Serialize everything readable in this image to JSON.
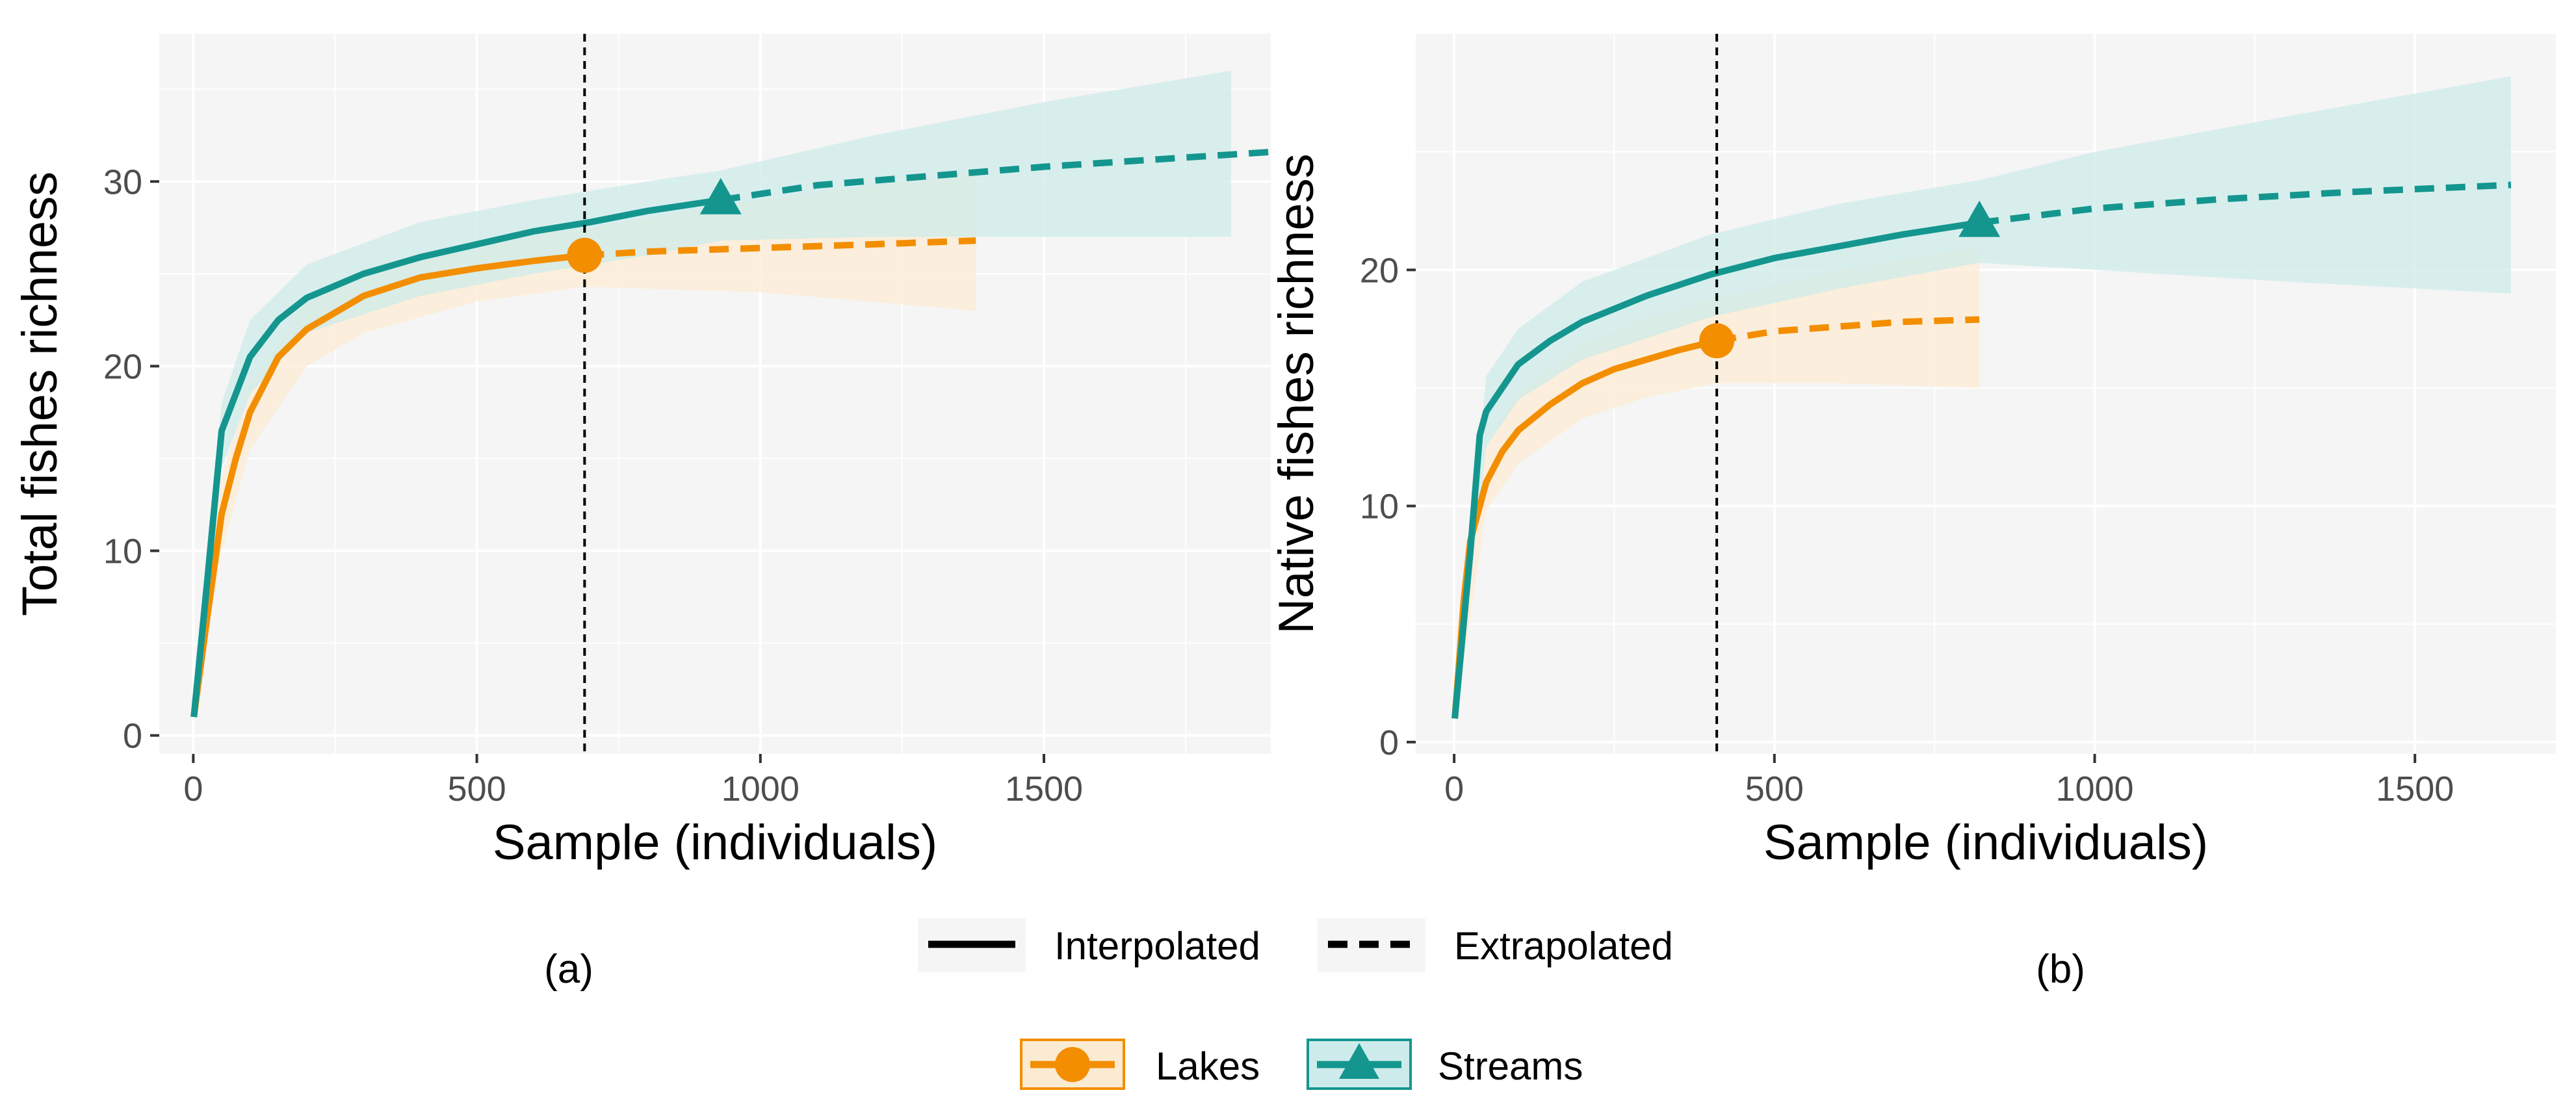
{
  "figure": {
    "panel_labels": [
      "(a)",
      "(b)"
    ]
  },
  "legend": {
    "line_types": [
      {
        "label": "Interpolated",
        "style": "solid"
      },
      {
        "label": "Extrapolated",
        "style": "dashed"
      }
    ],
    "groups": [
      {
        "label": "Lakes",
        "shape": "circle",
        "color": "#F28E00"
      },
      {
        "label": "Streams",
        "shape": "triangle",
        "color": "#14968F"
      }
    ]
  },
  "colors": {
    "lakes": "#F28E00",
    "lakes_fill": "#FCEBD3",
    "streams": "#14968F",
    "streams_fill": "#CDEBEA",
    "panel_bg": "#F5F5F5",
    "grid": "#FFFFFF"
  },
  "chart_data": [
    {
      "type": "line",
      "panel": "(a)",
      "xlabel": "Sample (individuals)",
      "ylabel": "Total fishes richness",
      "xlim": [
        -60,
        1900
      ],
      "ylim": [
        -1,
        38
      ],
      "xticks": [
        0,
        500,
        1000,
        1500
      ],
      "yticks": [
        0,
        10,
        20,
        30
      ],
      "grid": true,
      "reference_line_x": 690,
      "series": [
        {
          "name": "Lakes",
          "observed": {
            "x": 690,
            "y": 26
          },
          "interpolated": {
            "x": [
              1,
              25,
              50,
              75,
              100,
              150,
              200,
              300,
              400,
              500,
              600,
              690
            ],
            "y": [
              1,
              6.5,
              12,
              15,
              17.5,
              20.5,
              22,
              23.8,
              24.8,
              25.3,
              25.7,
              26
            ]
          },
          "extrapolated": {
            "x": [
              690,
              800,
              1000,
              1200,
              1380
            ],
            "y": [
              26,
              26.2,
              26.4,
              26.6,
              26.8
            ]
          },
          "ci_upper": {
            "x": [
              1,
              50,
              100,
              200,
              300,
              500,
              690,
              1000,
              1380
            ],
            "y": [
              2,
              14,
              19,
              23.5,
              25.2,
              26.8,
              27.5,
              29,
              30.5
            ]
          },
          "ci_lower": {
            "x": [
              1,
              50,
              100,
              200,
              300,
              500,
              690,
              1000,
              1380
            ],
            "y": [
              1,
              10,
              15.5,
              20,
              21.8,
              23.5,
              24.3,
              24,
              23
            ]
          }
        },
        {
          "name": "Streams",
          "observed": {
            "x": 930,
            "y": 29
          },
          "interpolated": {
            "x": [
              1,
              25,
              50,
              75,
              100,
              150,
              200,
              300,
              400,
              500,
              600,
              700,
              800,
              930
            ],
            "y": [
              1,
              8.5,
              16.5,
              18.5,
              20.5,
              22.5,
              23.7,
              25,
              25.9,
              26.6,
              27.3,
              27.8,
              28.4,
              29
            ]
          },
          "extrapolated": {
            "x": [
              930,
              1100,
              1300,
              1500,
              1700,
              1900
            ],
            "y": [
              29,
              29.8,
              30.3,
              30.8,
              31.2,
              31.6
            ]
          },
          "ci_upper": {
            "x": [
              1,
              50,
              100,
              200,
              400,
              600,
              800,
              930,
              1200,
              1500,
              1830
            ],
            "y": [
              2,
              18,
              22.5,
              25.5,
              27.8,
              29,
              30,
              30.6,
              32.5,
              34.3,
              36
            ]
          },
          "ci_lower": {
            "x": [
              1,
              50,
              100,
              200,
              400,
              600,
              800,
              930,
              1200,
              1500,
              1830
            ],
            "y": [
              1,
              14.5,
              18.5,
              21.8,
              23.8,
              25,
              26,
              26.8,
              27,
              27,
              27
            ]
          }
        }
      ]
    },
    {
      "type": "line",
      "panel": "(b)",
      "xlabel": "Sample (individuals)",
      "ylabel": "Native fishes richness",
      "xlim": [
        -60,
        1720
      ],
      "ylim": [
        -0.5,
        30
      ],
      "xticks": [
        0,
        500,
        1000,
        1500
      ],
      "yticks": [
        0,
        10,
        20
      ],
      "grid": true,
      "reference_line_x": 410,
      "series": [
        {
          "name": "Lakes",
          "observed": {
            "x": 410,
            "y": 17
          },
          "interpolated": {
            "x": [
              1,
              15,
              25,
              50,
              75,
              100,
              150,
              200,
              250,
              300,
              350,
              410
            ],
            "y": [
              1,
              6,
              8.5,
              11,
              12.3,
              13.2,
              14.3,
              15.2,
              15.8,
              16.2,
              16.6,
              17
            ]
          },
          "extrapolated": {
            "x": [
              410,
              500,
              600,
              700,
              820
            ],
            "y": [
              17,
              17.4,
              17.6,
              17.8,
              17.9
            ]
          },
          "ci_upper": {
            "x": [
              1,
              50,
              100,
              200,
              300,
              410,
              600,
              820
            ],
            "y": [
              2,
              12.5,
              14.8,
              16.8,
              18,
              18.8,
              20,
              21
            ]
          },
          "ci_lower": {
            "x": [
              1,
              50,
              100,
              200,
              300,
              410,
              600,
              820
            ],
            "y": [
              1,
              9.8,
              11.8,
              13.7,
              14.6,
              15.2,
              15.2,
              15
            ]
          }
        },
        {
          "name": "Streams",
          "observed": {
            "x": 820,
            "y": 22
          },
          "interpolated": {
            "x": [
              1,
              25,
              40,
              50,
              75,
              100,
              150,
              200,
              300,
              400,
              500,
              600,
              700,
              820
            ],
            "y": [
              1,
              8,
              13,
              14,
              15,
              16,
              17,
              17.8,
              18.9,
              19.8,
              20.5,
              21,
              21.5,
              22
            ]
          },
          "extrapolated": {
            "x": [
              820,
              1000,
              1200,
              1400,
              1650
            ],
            "y": [
              22,
              22.6,
              23,
              23.3,
              23.6
            ]
          },
          "ci_upper": {
            "x": [
              1,
              50,
              100,
              200,
              400,
              600,
              820,
              1000,
              1300,
              1650
            ],
            "y": [
              2,
              15.5,
              17.5,
              19.5,
              21.5,
              22.8,
              23.8,
              25,
              26.5,
              28.2
            ]
          },
          "ci_lower": {
            "x": [
              1,
              50,
              100,
              200,
              400,
              600,
              820,
              1000,
              1300,
              1650
            ],
            "y": [
              1,
              12.5,
              14.5,
              16.2,
              18,
              19.2,
              20.3,
              20,
              19.5,
              19
            ]
          }
        }
      ]
    }
  ]
}
